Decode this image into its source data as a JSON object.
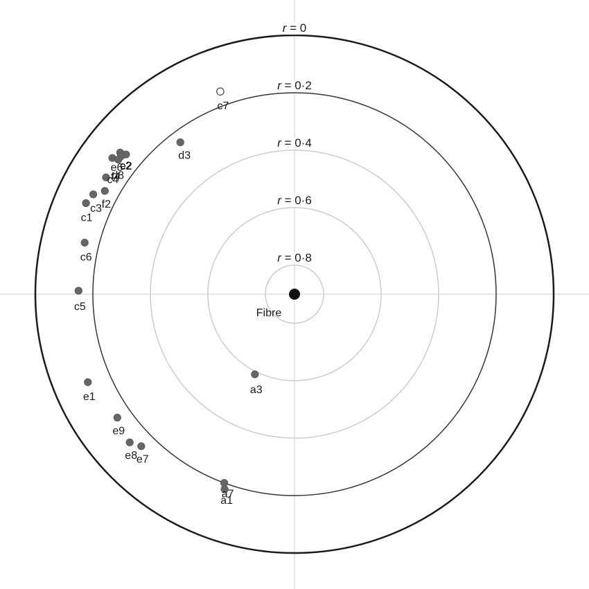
{
  "chart_data": {
    "type": "scatter",
    "coordinate_system": "polar",
    "center_label": "Fibre",
    "ring_labels": [
      {
        "r": 0,
        "label": "r = 0"
      },
      {
        "r": 0.2,
        "label": "r = 0·2"
      },
      {
        "r": 0.4,
        "label": "r = 0·4"
      },
      {
        "r": 0.6,
        "label": "r = 0·6"
      },
      {
        "r": 0.8,
        "label": "r = 0·8"
      }
    ],
    "points": [
      {
        "label": "c7",
        "angle_deg": 110.1,
        "r": 0.15,
        "filled": false
      },
      {
        "label": "d3",
        "angle_deg": 126.9,
        "r": 0.24,
        "filled": true
      },
      {
        "label": "e2",
        "angle_deg": 140.3,
        "r": 0.14,
        "filled": true
      },
      {
        "label": "c2",
        "angle_deg": 140.9,
        "r": 0.12,
        "filled": true
      },
      {
        "label": "e6",
        "angle_deg": 141.5,
        "r": 0.13,
        "filled": true
      },
      {
        "label": "d8",
        "angle_deg": 143.2,
        "r": 0.11,
        "filled": true
      },
      {
        "label": "f4",
        "angle_deg": 142.6,
        "r": 0.13,
        "filled": true
      },
      {
        "label": "c4",
        "angle_deg": 148.2,
        "r": 0.13,
        "filled": true
      },
      {
        "label": "f2",
        "angle_deg": 151.4,
        "r": 0.15,
        "filled": true
      },
      {
        "label": "c1",
        "angle_deg": 156.4,
        "r": 0.11,
        "filled": true
      },
      {
        "label": "c3",
        "angle_deg": 153.6,
        "r": 0.12,
        "filled": true
      },
      {
        "label": "c6",
        "angle_deg": 166.2,
        "r": 0.15,
        "filled": true
      },
      {
        "label": "c5",
        "angle_deg": 179.1,
        "r": 0.15,
        "filled": true
      },
      {
        "label": "e1",
        "angle_deg": 203.1,
        "r": 0.12,
        "filled": true
      },
      {
        "label": "e9",
        "angle_deg": 214.9,
        "r": 0.15,
        "filled": true
      },
      {
        "label": "e8",
        "angle_deg": 222.0,
        "r": 0.13,
        "filled": true
      },
      {
        "label": "e7",
        "angle_deg": 224.8,
        "r": 0.15,
        "filled": true
      },
      {
        "label": "a7",
        "angle_deg": 249.6,
        "r": 0.2,
        "filled": true
      },
      {
        "label": "a1",
        "angle_deg": 250.3,
        "r": 0.18,
        "filled": true
      },
      {
        "label": "a3",
        "angle_deg": 243.7,
        "r": 0.59,
        "filled": true
      }
    ],
    "grid": true,
    "legend": "none"
  },
  "colors": {
    "outer_circle": "#1a1a1a",
    "inner_ring": "#cccccc",
    "axis_lines": "#cccccc",
    "point_fill": "#666666",
    "point_open_fill": "#ffffff",
    "center_dot": "#111111"
  }
}
